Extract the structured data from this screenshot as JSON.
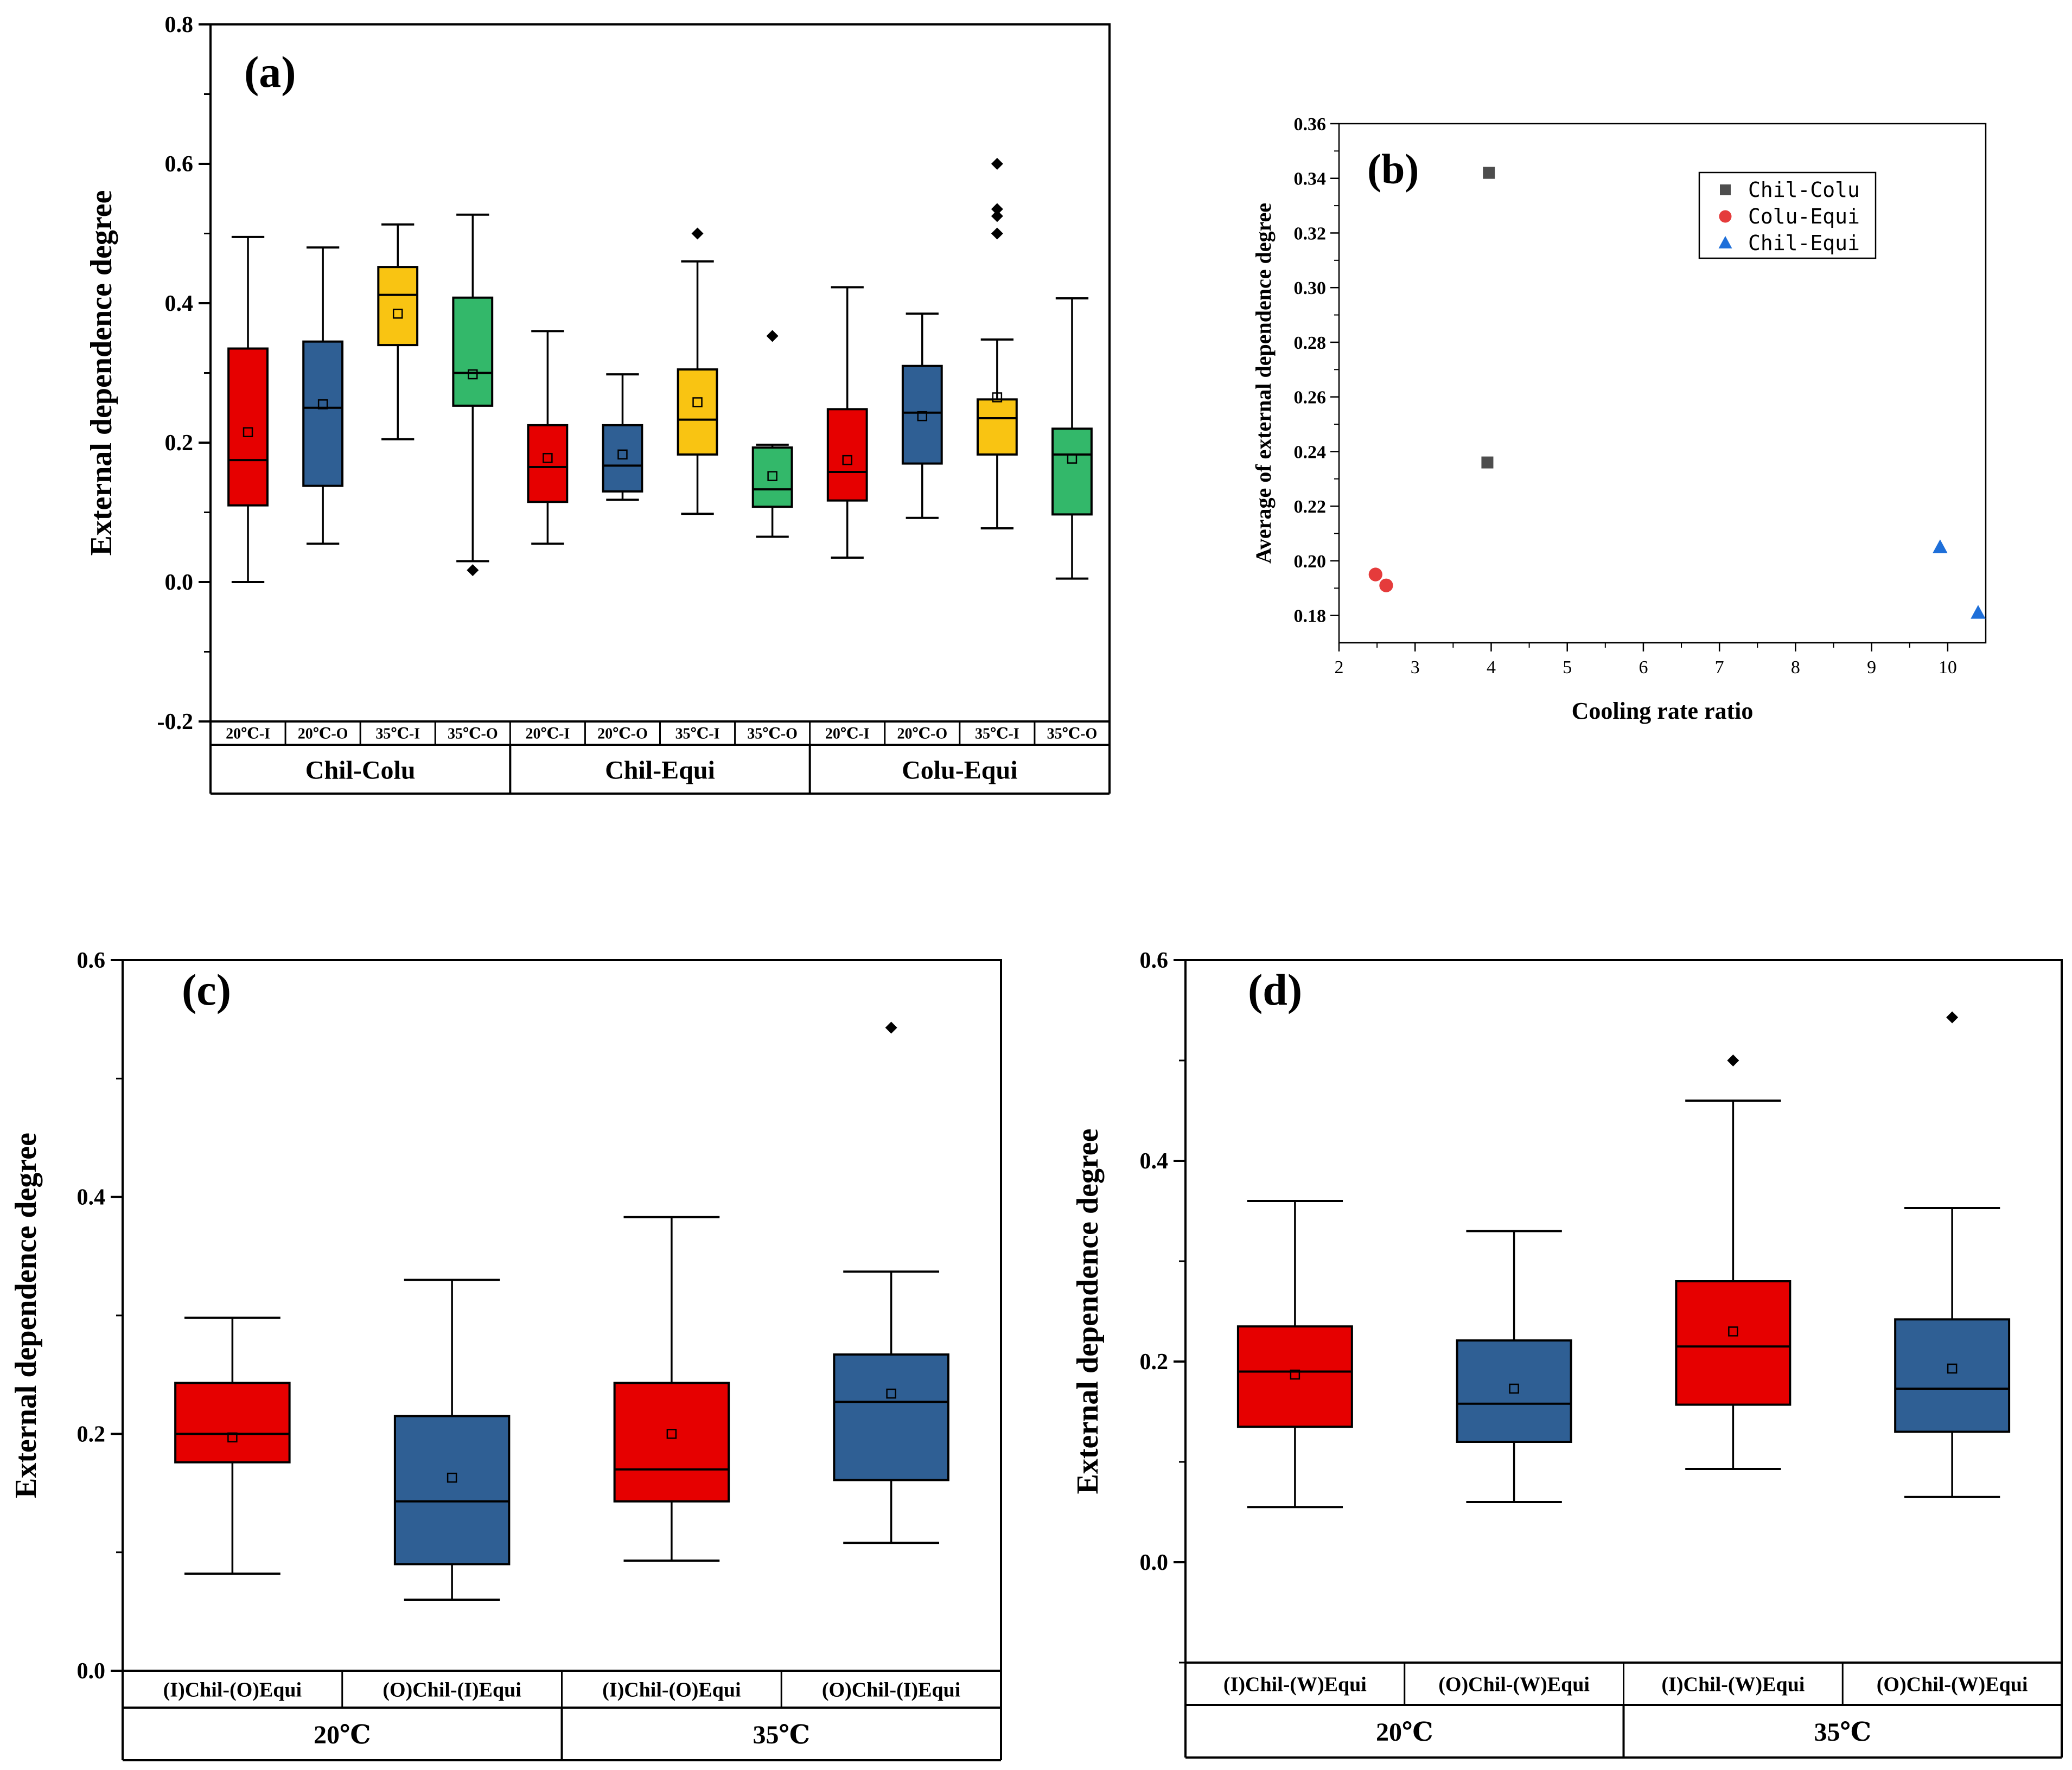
{
  "colors": {
    "red": "#e60000",
    "blue": "#2f5f94",
    "yellow": "#f9c412",
    "green": "#33b86a",
    "gray_marker": "#4d4d4d",
    "red_marker": "#e53b3b",
    "blue_marker": "#1e6fd9"
  },
  "chart_data": [
    {
      "id": "a",
      "type": "box",
      "panel_label": "(a)",
      "ylabel": "External dependence degree",
      "ylim": [
        -0.2,
        0.8
      ],
      "yticks": [
        "-0.2",
        "0.0",
        "0.2",
        "0.4",
        "0.6",
        "0.8"
      ],
      "ytick_values": [
        -0.2,
        0.0,
        0.2,
        0.4,
        0.6,
        0.8
      ],
      "groups": [
        "Chil-Colu",
        "Chil-Equi",
        "Colu-Equi"
      ],
      "categories": [
        "20℃-I",
        "20℃-O",
        "35℃-I",
        "35℃-O",
        "20℃-I",
        "20℃-O",
        "35℃-I",
        "35℃-O",
        "20℃-I",
        "20℃-O",
        "35℃-I",
        "35℃-O"
      ],
      "boxes": [
        {
          "color": "red",
          "whisker_low": 0.0,
          "q1": 0.11,
          "median": 0.175,
          "q3": 0.335,
          "whisker_high": 0.495,
          "mean": 0.215,
          "outliers": []
        },
        {
          "color": "blue",
          "whisker_low": 0.055,
          "q1": 0.138,
          "median": 0.25,
          "q3": 0.345,
          "whisker_high": 0.48,
          "mean": 0.255,
          "outliers": []
        },
        {
          "color": "yellow",
          "whisker_low": 0.205,
          "q1": 0.34,
          "median": 0.412,
          "q3": 0.452,
          "whisker_high": 0.513,
          "mean": 0.385,
          "outliers": []
        },
        {
          "color": "green",
          "whisker_low": 0.03,
          "q1": 0.253,
          "median": 0.3,
          "q3": 0.408,
          "whisker_high": 0.527,
          "mean": 0.298,
          "outliers": [
            0.017
          ]
        },
        {
          "color": "red",
          "whisker_low": 0.055,
          "q1": 0.115,
          "median": 0.165,
          "q3": 0.225,
          "whisker_high": 0.36,
          "mean": 0.178,
          "outliers": []
        },
        {
          "color": "blue",
          "whisker_low": 0.118,
          "q1": 0.13,
          "median": 0.167,
          "q3": 0.225,
          "whisker_high": 0.298,
          "mean": 0.183,
          "outliers": []
        },
        {
          "color": "yellow",
          "whisker_low": 0.098,
          "q1": 0.183,
          "median": 0.233,
          "q3": 0.305,
          "whisker_high": 0.46,
          "mean": 0.258,
          "outliers": [
            0.5
          ]
        },
        {
          "color": "green",
          "whisker_low": 0.065,
          "q1": 0.108,
          "median": 0.133,
          "q3": 0.193,
          "whisker_high": 0.197,
          "mean": 0.152,
          "outliers": [
            0.353
          ]
        },
        {
          "color": "red",
          "whisker_low": 0.035,
          "q1": 0.117,
          "median": 0.158,
          "q3": 0.248,
          "whisker_high": 0.423,
          "mean": 0.175,
          "outliers": []
        },
        {
          "color": "blue",
          "whisker_low": 0.092,
          "q1": 0.17,
          "median": 0.243,
          "q3": 0.31,
          "whisker_high": 0.385,
          "mean": 0.238,
          "outliers": []
        },
        {
          "color": "yellow",
          "whisker_low": 0.077,
          "q1": 0.183,
          "median": 0.235,
          "q3": 0.262,
          "whisker_high": 0.348,
          "mean": 0.265,
          "outliers": [
            0.5,
            0.525,
            0.535,
            0.6
          ]
        },
        {
          "color": "green",
          "whisker_low": 0.005,
          "q1": 0.097,
          "median": 0.183,
          "q3": 0.22,
          "whisker_high": 0.407,
          "mean": 0.177,
          "outliers": []
        }
      ]
    },
    {
      "id": "b",
      "type": "scatter",
      "panel_label": "(b)",
      "xlabel": "Cooling rate ratio",
      "ylabel": "Average of external dependence degree",
      "xlim": [
        2,
        10.5
      ],
      "ylim": [
        0.17,
        0.36
      ],
      "xticks": [
        "2",
        "3",
        "4",
        "5",
        "6",
        "7",
        "8",
        "9",
        "10"
      ],
      "xtick_values": [
        2,
        3,
        4,
        5,
        6,
        7,
        8,
        9,
        10
      ],
      "yticks": [
        "0.18",
        "0.20",
        "0.22",
        "0.24",
        "0.26",
        "0.28",
        "0.30",
        "0.32",
        "0.34",
        "0.36"
      ],
      "ytick_values": [
        0.18,
        0.2,
        0.22,
        0.24,
        0.26,
        0.28,
        0.3,
        0.32,
        0.34,
        0.36
      ],
      "legend_position": "top-center",
      "series": [
        {
          "name": "Chil-Colu",
          "marker": "square",
          "color": "gray_marker",
          "points": [
            [
              3.97,
              0.342
            ],
            [
              3.95,
              0.236
            ]
          ]
        },
        {
          "name": "Colu-Equi",
          "marker": "circle",
          "color": "red_marker",
          "points": [
            [
              2.48,
              0.195
            ],
            [
              2.62,
              0.191
            ]
          ]
        },
        {
          "name": "Chil-Equi",
          "marker": "triangle",
          "color": "blue_marker",
          "points": [
            [
              9.9,
              0.205
            ],
            [
              10.4,
              0.181
            ]
          ]
        }
      ]
    },
    {
      "id": "c",
      "type": "box",
      "panel_label": "(c)",
      "ylabel": "External dependence degree",
      "ylim": [
        0.0,
        0.6
      ],
      "yticks": [
        "0.0",
        "0.2",
        "0.4",
        "0.6"
      ],
      "ytick_values": [
        0.0,
        0.2,
        0.4,
        0.6
      ],
      "groups": [
        "20℃",
        "35℃"
      ],
      "categories": [
        "(I)Chil-(O)Equi",
        "(O)Chil-(I)Equi",
        "(I)Chil-(O)Equi",
        "(O)Chil-(I)Equi"
      ],
      "boxes": [
        {
          "color": "red",
          "whisker_low": 0.082,
          "q1": 0.176,
          "median": 0.2,
          "q3": 0.243,
          "whisker_high": 0.298,
          "mean": 0.197,
          "outliers": []
        },
        {
          "color": "blue",
          "whisker_low": 0.06,
          "q1": 0.09,
          "median": 0.143,
          "q3": 0.215,
          "whisker_high": 0.33,
          "mean": 0.163,
          "outliers": []
        },
        {
          "color": "red",
          "whisker_low": 0.093,
          "q1": 0.143,
          "median": 0.17,
          "q3": 0.243,
          "whisker_high": 0.383,
          "mean": 0.2,
          "outliers": []
        },
        {
          "color": "blue",
          "whisker_low": 0.108,
          "q1": 0.161,
          "median": 0.227,
          "q3": 0.267,
          "whisker_high": 0.337,
          "mean": 0.234,
          "outliers": [
            0.543
          ]
        }
      ]
    },
    {
      "id": "d",
      "type": "box",
      "panel_label": "(d)",
      "ylabel": "External dependence degree",
      "ylim": [
        -0.1,
        0.6
      ],
      "yticks": [
        "0.0",
        "0.2",
        "0.4",
        "0.6"
      ],
      "ytick_values": [
        0.0,
        0.2,
        0.4,
        0.6
      ],
      "groups": [
        "20℃",
        "35℃"
      ],
      "categories": [
        "(I)Chil-(W)Equi",
        "(O)Chil-(W)Equi",
        "(I)Chil-(W)Equi",
        "(O)Chil-(W)Equi"
      ],
      "boxes": [
        {
          "color": "red",
          "whisker_low": 0.055,
          "q1": 0.135,
          "median": 0.19,
          "q3": 0.235,
          "whisker_high": 0.36,
          "mean": 0.187,
          "outliers": []
        },
        {
          "color": "blue",
          "whisker_low": 0.06,
          "q1": 0.12,
          "median": 0.158,
          "q3": 0.221,
          "whisker_high": 0.33,
          "mean": 0.173,
          "outliers": []
        },
        {
          "color": "red",
          "whisker_low": 0.093,
          "q1": 0.157,
          "median": 0.215,
          "q3": 0.28,
          "whisker_high": 0.46,
          "mean": 0.23,
          "outliers": [
            0.5
          ]
        },
        {
          "color": "blue",
          "whisker_low": 0.065,
          "q1": 0.13,
          "median": 0.173,
          "q3": 0.242,
          "whisker_high": 0.353,
          "mean": 0.193,
          "outliers": [
            0.543
          ]
        }
      ]
    }
  ]
}
